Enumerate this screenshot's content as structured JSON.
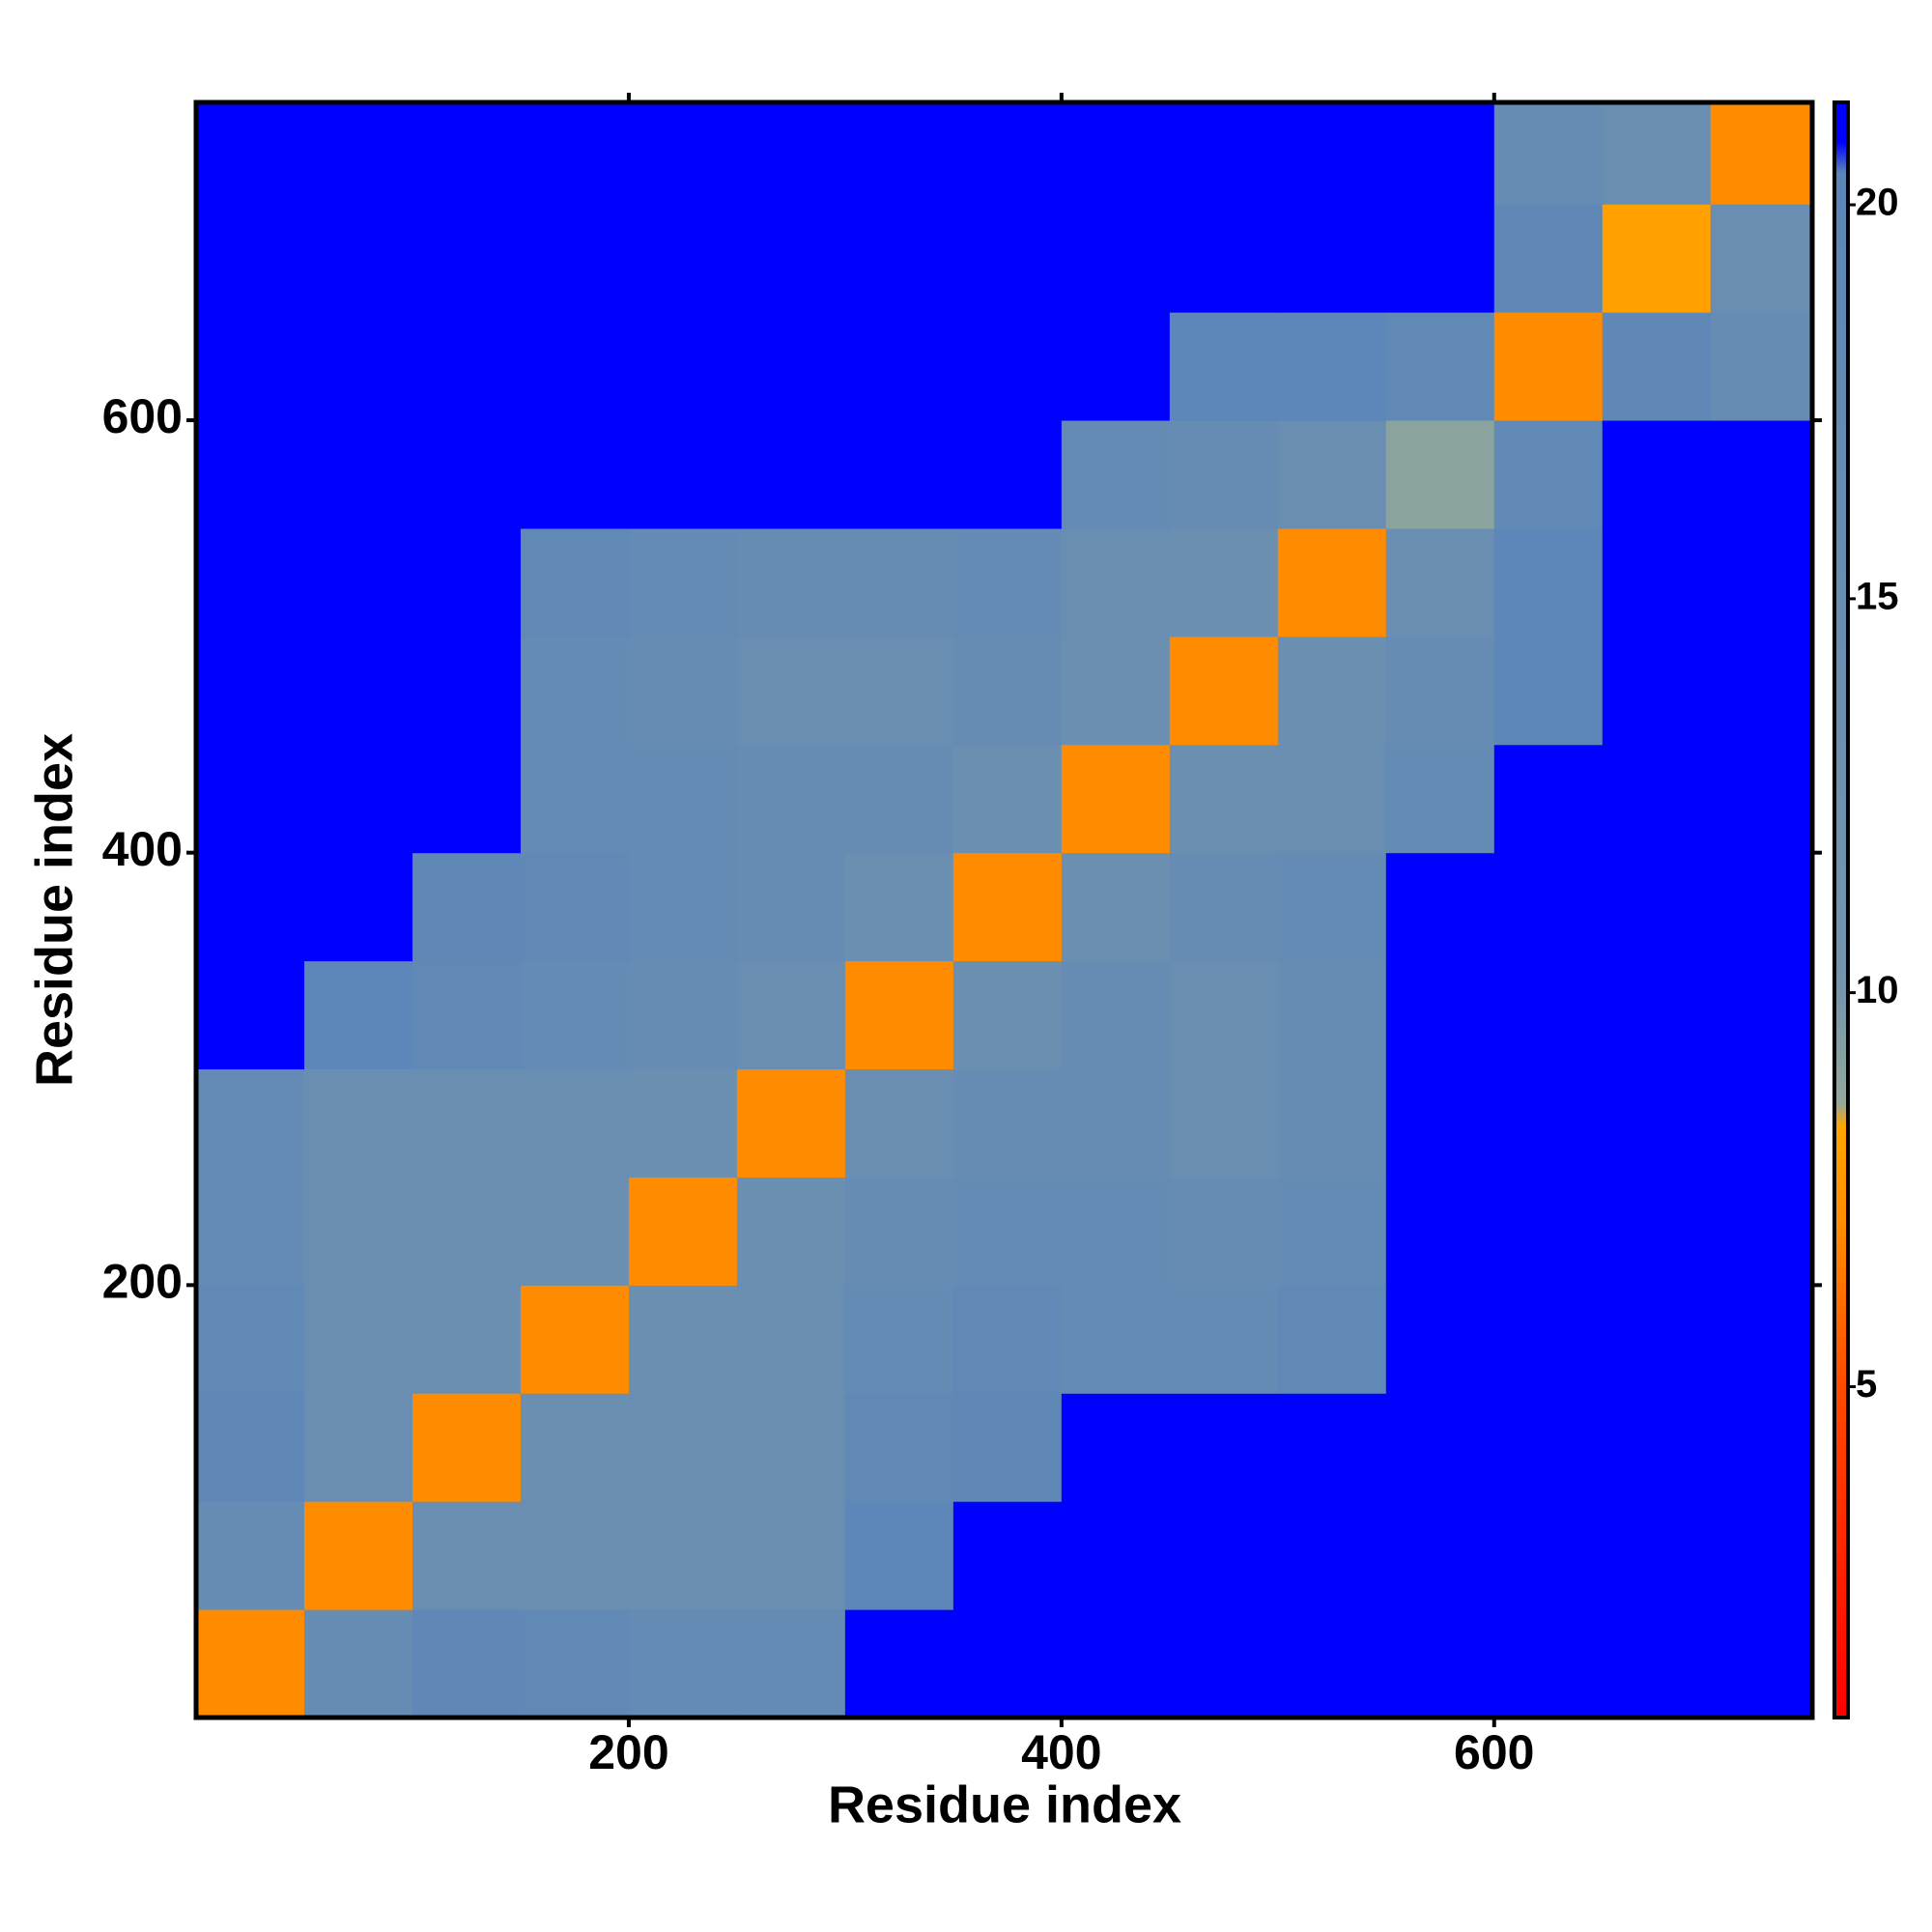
{
  "chart_data": {
    "type": "heatmap",
    "xlabel": "Residue index",
    "ylabel": "Residue index",
    "xbins": [
      0,
      50,
      100,
      150,
      200,
      250,
      300,
      350,
      400,
      450,
      500,
      550,
      600,
      650,
      700,
      747
    ],
    "ybins": [
      0,
      50,
      100,
      150,
      200,
      250,
      300,
      350,
      400,
      450,
      500,
      550,
      600,
      650,
      700,
      747
    ],
    "z": [
      [
        7,
        16,
        19,
        18,
        17,
        17,
        22,
        22,
        22,
        22,
        22,
        22,
        22,
        22,
        22
      ],
      [
        16,
        7,
        15,
        15,
        15,
        15,
        20,
        22,
        22,
        22,
        22,
        22,
        22,
        22,
        22
      ],
      [
        19,
        15,
        7,
        14,
        15,
        15,
        18,
        19,
        22,
        22,
        22,
        22,
        22,
        22,
        22
      ],
      [
        18,
        15,
        14,
        7,
        14,
        15,
        17,
        18,
        17,
        17,
        18,
        22,
        22,
        22,
        22
      ],
      [
        17,
        15,
        15,
        14,
        7,
        14,
        16,
        17,
        17,
        16,
        17,
        22,
        22,
        22,
        22
      ],
      [
        17,
        15,
        15,
        15,
        14,
        7,
        15,
        16,
        16,
        15,
        16,
        22,
        22,
        22,
        22
      ],
      [
        22,
        20,
        18,
        17,
        16,
        15,
        7,
        14,
        16,
        15,
        16,
        22,
        22,
        22,
        22
      ],
      [
        22,
        22,
        19,
        18,
        17,
        16,
        14,
        7,
        14,
        16,
        17,
        22,
        22,
        22,
        22
      ],
      [
        22,
        22,
        22,
        17,
        17,
        16,
        16,
        14,
        7,
        14,
        15,
        17,
        21,
        22,
        22
      ],
      [
        22,
        22,
        22,
        17,
        16,
        15,
        15,
        16,
        14,
        7,
        14,
        16,
        20,
        22,
        22
      ],
      [
        22,
        22,
        22,
        18,
        17,
        16,
        16,
        17,
        15,
        14,
        7,
        15,
        20,
        21,
        21
      ],
      [
        22,
        22,
        22,
        22,
        22,
        22,
        22,
        22,
        17,
        16,
        15,
        9,
        18,
        22,
        21
      ],
      [
        22,
        22,
        22,
        22,
        22,
        22,
        22,
        22,
        21,
        20,
        20,
        18,
        7,
        19,
        16
      ],
      [
        22,
        22,
        22,
        22,
        22,
        22,
        22,
        22,
        22,
        22,
        21,
        22,
        19,
        8,
        15
      ],
      [
        22,
        22,
        22,
        22,
        22,
        22,
        22,
        22,
        22,
        22,
        21,
        21,
        16,
        15,
        7
      ]
    ],
    "xlim": [
      0,
      747
    ],
    "ylim": [
      0,
      747
    ],
    "xticks": [
      200,
      400,
      600
    ],
    "yticks": [
      200,
      400,
      600
    ],
    "clim": [
      0.8,
      21.3
    ],
    "cticks": [
      5,
      10,
      15,
      20
    ],
    "colorscale": [
      [
        0.8,
        "#ff0000"
      ],
      [
        5,
        "#ff4a00"
      ],
      [
        7,
        "#ff8c00"
      ],
      [
        8.3,
        "#ffa500"
      ],
      [
        8.6,
        "#93a99a"
      ],
      [
        10,
        "#7595ad"
      ],
      [
        20.4,
        "#5b86b8"
      ],
      [
        20.8,
        "#0000ff"
      ]
    ]
  }
}
